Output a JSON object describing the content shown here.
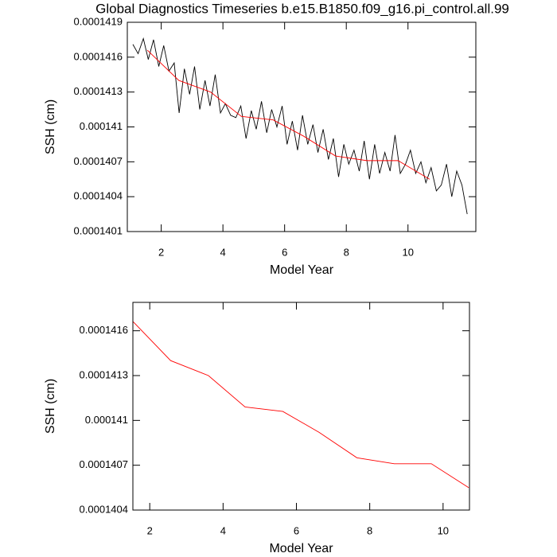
{
  "chart_data": [
    {
      "type": "line",
      "title": "Global Diagnostics Timeseries b.e15.B1850.f09_g16.pi_control.all.99",
      "xlabel": "Model Year",
      "ylabel": "SSH (cm)",
      "xlim": [
        0.9,
        12.2
      ],
      "xticks": [
        2,
        4,
        6,
        8,
        10
      ],
      "ylim": [
        0.0001401,
        0.0001419
      ],
      "yticks": [
        0.0001401,
        0.0001404,
        0.0001407,
        0.000141,
        0.0001413,
        0.0001416,
        0.0001419
      ],
      "series": [
        {
          "color": "#000000",
          "x": [
            1.08,
            1.25,
            1.42,
            1.58,
            1.75,
            1.92,
            2.08,
            2.25,
            2.42,
            2.58,
            2.75,
            2.92,
            3.08,
            3.25,
            3.42,
            3.58,
            3.75,
            3.92,
            4.08,
            4.25,
            4.42,
            4.58,
            4.75,
            4.92,
            5.08,
            5.25,
            5.42,
            5.58,
            5.75,
            5.92,
            6.08,
            6.25,
            6.42,
            6.58,
            6.75,
            6.92,
            7.08,
            7.25,
            7.42,
            7.58,
            7.75,
            7.92,
            8.08,
            8.25,
            8.42,
            8.58,
            8.75,
            8.92,
            9.08,
            9.25,
            9.42,
            9.58,
            9.75,
            9.92,
            10.08,
            10.25,
            10.42,
            10.58,
            10.75,
            10.92,
            11.08,
            11.25,
            11.42,
            11.58,
            11.75,
            11.92
          ],
          "values": [
            0.00014171,
            0.00014163,
            0.00014176,
            0.00014158,
            0.00014175,
            0.00014152,
            0.0001417,
            0.00014148,
            0.00014155,
            0.00014112,
            0.0001415,
            0.00014128,
            0.00014152,
            0.00014115,
            0.0001414,
            0.00014118,
            0.00014145,
            0.00014112,
            0.0001412,
            0.0001411,
            0.00014108,
            0.00014118,
            0.0001409,
            0.00014114,
            0.00014098,
            0.00014122,
            0.00014095,
            0.00014115,
            0.000141,
            0.00014118,
            0.00014085,
            0.00014105,
            0.0001408,
            0.0001411,
            0.00014085,
            0.00014102,
            0.00014078,
            0.00014098,
            0.00014072,
            0.0001409,
            0.00014057,
            0.00014085,
            0.00014068,
            0.0001408,
            0.00014062,
            0.00014088,
            0.00014055,
            0.00014085,
            0.0001406,
            0.00014078,
            0.00014062,
            0.00014093,
            0.0001406,
            0.00014068,
            0.0001408,
            0.0001406,
            0.0001407,
            0.00014052,
            0.00014065,
            0.00014045,
            0.0001405,
            0.00014068,
            0.0001404,
            0.00014062,
            0.0001405,
            0.00014025
          ]
        },
        {
          "color": "#ff0000",
          "x": [
            1.55,
            2.57,
            3.6,
            4.6,
            5.63,
            6.62,
            7.65,
            8.67,
            9.68,
            10.7
          ],
          "values": [
            0.00014166,
            0.0001414,
            0.0001413,
            0.00014109,
            0.00014106,
            0.00014092,
            0.00014075,
            0.00014071,
            0.00014071,
            0.00014055
          ]
        }
      ]
    },
    {
      "type": "line",
      "xlabel": "Model Year",
      "ylabel": "SSH (cm)",
      "xlim": [
        1.54,
        10.72
      ],
      "xticks": [
        2,
        4,
        6,
        8,
        10
      ],
      "ylim": [
        0.0001404,
        0.00014179
      ],
      "yticks": [
        0.0001404,
        0.0001407,
        0.000141,
        0.0001413,
        0.0001416
      ],
      "series": [
        {
          "color": "#ff0000",
          "x": [
            1.55,
            2.57,
            3.6,
            4.6,
            5.63,
            6.62,
            7.65,
            8.67,
            9.68,
            10.7
          ],
          "values": [
            0.00014166,
            0.0001414,
            0.0001413,
            0.00014109,
            0.00014106,
            0.00014092,
            0.00014075,
            0.00014071,
            0.00014071,
            0.00014055
          ]
        }
      ]
    }
  ]
}
